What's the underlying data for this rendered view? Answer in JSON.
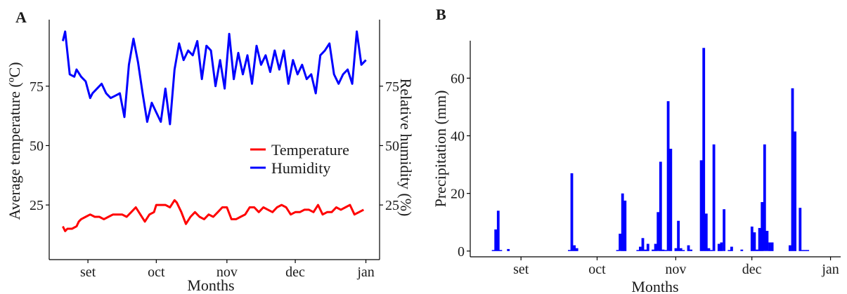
{
  "chart_data": [
    {
      "panel": "A",
      "type": "line",
      "xlabel": "Months",
      "ylabel": "Average temperature (ºC)",
      "y2label": "Relative humidity (%)",
      "x_ticks": [
        "set",
        "oct",
        "nov",
        "dec",
        "jan"
      ],
      "x_tick_dates": [
        "2020-09-01",
        "2020-10-01",
        "2020-11-01",
        "2020-12-01",
        "2021-01-01"
      ],
      "xlim": [
        "2020-08-15",
        "2021-01-07"
      ],
      "ylim": [
        2,
        103
      ],
      "y_ticks": [
        25,
        50,
        75
      ],
      "y2_ticks": [
        25,
        50,
        75
      ],
      "legend": {
        "position": "right",
        "entries": [
          "Temperature",
          "Humidity"
        ]
      },
      "grid": false,
      "series": [
        {
          "name": "Temperature",
          "color": "#ff0000",
          "x": [
            "2020-08-21",
            "2020-08-22",
            "2020-08-23",
            "2020-08-25",
            "2020-08-27",
            "2020-08-28",
            "2020-08-29",
            "2020-08-31",
            "2020-09-02",
            "2020-09-04",
            "2020-09-06",
            "2020-09-08",
            "2020-09-10",
            "2020-09-12",
            "2020-09-14",
            "2020-09-16",
            "2020-09-18",
            "2020-09-20",
            "2020-09-22",
            "2020-09-24",
            "2020-09-26",
            "2020-09-28",
            "2020-09-30",
            "2020-10-01",
            "2020-10-03",
            "2020-10-05",
            "2020-10-07",
            "2020-10-09",
            "2020-10-10",
            "2020-10-12",
            "2020-10-14",
            "2020-10-16",
            "2020-10-18",
            "2020-10-20",
            "2020-10-22",
            "2020-10-24",
            "2020-10-26",
            "2020-10-28",
            "2020-10-30",
            "2020-11-01",
            "2020-11-03",
            "2020-11-05",
            "2020-11-07",
            "2020-11-09",
            "2020-11-11",
            "2020-11-13",
            "2020-11-15",
            "2020-11-17",
            "2020-11-19",
            "2020-11-21",
            "2020-11-23",
            "2020-11-25",
            "2020-11-27",
            "2020-11-29",
            "2020-12-01",
            "2020-12-03",
            "2020-12-05",
            "2020-12-07",
            "2020-12-09",
            "2020-12-11",
            "2020-12-13",
            "2020-12-15",
            "2020-12-17",
            "2020-12-19",
            "2020-12-21",
            "2020-12-23",
            "2020-12-25",
            "2020-12-27",
            "2020-12-29",
            "2020-12-31"
          ],
          "values": [
            16,
            14,
            15,
            15,
            16,
            18,
            19,
            20,
            21,
            20,
            20,
            19,
            20,
            21,
            21,
            21,
            20,
            22,
            24,
            21,
            18,
            21,
            22,
            25,
            25,
            25,
            24,
            27,
            26,
            22,
            17,
            20,
            22,
            20,
            19,
            21,
            20,
            22,
            24,
            24,
            19,
            19,
            20,
            21,
            24,
            24,
            22,
            24,
            23,
            22,
            24,
            25,
            24,
            21,
            22,
            22,
            23,
            23,
            22,
            25,
            21,
            22,
            22,
            24,
            23,
            24,
            25,
            21,
            22,
            23
          ]
        },
        {
          "name": "Humidity",
          "color": "#0000ff",
          "x": [
            "2020-08-21",
            "2020-08-22",
            "2020-08-24",
            "2020-08-26",
            "2020-08-27",
            "2020-08-29",
            "2020-08-31",
            "2020-09-02",
            "2020-09-03",
            "2020-09-05",
            "2020-09-07",
            "2020-09-09",
            "2020-09-11",
            "2020-09-13",
            "2020-09-15",
            "2020-09-17",
            "2020-09-19",
            "2020-09-21",
            "2020-09-23",
            "2020-09-25",
            "2020-09-27",
            "2020-09-29",
            "2020-10-01",
            "2020-10-03",
            "2020-10-05",
            "2020-10-07",
            "2020-10-09",
            "2020-10-11",
            "2020-10-13",
            "2020-10-15",
            "2020-10-17",
            "2020-10-19",
            "2020-10-21",
            "2020-10-23",
            "2020-10-25",
            "2020-10-27",
            "2020-10-29",
            "2020-10-31",
            "2020-11-02",
            "2020-11-04",
            "2020-11-06",
            "2020-11-08",
            "2020-11-10",
            "2020-11-12",
            "2020-11-14",
            "2020-11-16",
            "2020-11-18",
            "2020-11-20",
            "2020-11-22",
            "2020-11-24",
            "2020-11-26",
            "2020-11-28",
            "2020-11-30",
            "2020-12-02",
            "2020-12-04",
            "2020-12-06",
            "2020-12-08",
            "2020-12-10",
            "2020-12-12",
            "2020-12-14",
            "2020-12-16",
            "2020-12-18",
            "2020-12-20",
            "2020-12-22",
            "2020-12-24",
            "2020-12-26",
            "2020-12-28",
            "2020-12-30",
            "2021-01-01"
          ],
          "values": [
            94,
            98,
            80,
            79,
            82,
            79,
            77,
            70,
            72,
            74,
            76,
            72,
            70,
            71,
            72,
            62,
            84,
            95,
            85,
            72,
            60,
            68,
            64,
            60,
            74,
            59,
            82,
            93,
            86,
            90,
            88,
            94,
            78,
            92,
            90,
            75,
            86,
            74,
            97,
            78,
            89,
            80,
            88,
            76,
            92,
            84,
            88,
            81,
            90,
            82,
            90,
            76,
            86,
            80,
            84,
            78,
            80,
            72,
            88,
            90,
            93,
            80,
            76,
            80,
            82,
            76,
            98,
            84,
            86
          ]
        }
      ]
    },
    {
      "panel": "B",
      "type": "bar",
      "xlabel": "Months",
      "ylabel": "Precipitation (mm)",
      "x_ticks": [
        "set",
        "oct",
        "nov",
        "dec",
        "jan"
      ],
      "x_tick_dates": [
        "2020-09-01",
        "2020-10-01",
        "2020-11-01",
        "2020-12-01",
        "2021-01-01"
      ],
      "xlim": [
        "2020-08-12",
        "2021-01-05"
      ],
      "ylim": [
        -2,
        73
      ],
      "y_ticks": [
        0,
        20,
        40,
        60
      ],
      "grid": false,
      "series": [
        {
          "name": "",
          "color": "#0000ff",
          "x": [
            "2020-08-21",
            "2020-08-22",
            "2020-08-23",
            "2020-08-24",
            "2020-08-27",
            "2020-09-20",
            "2020-09-21",
            "2020-09-22",
            "2020-09-23",
            "2020-10-09",
            "2020-10-10",
            "2020-10-11",
            "2020-10-12",
            "2020-10-17",
            "2020-10-18",
            "2020-10-19",
            "2020-10-20",
            "2020-10-21",
            "2020-10-23",
            "2020-10-24",
            "2020-10-25",
            "2020-10-26",
            "2020-10-27",
            "2020-10-28",
            "2020-10-29",
            "2020-10-30",
            "2020-11-01",
            "2020-11-02",
            "2020-11-03",
            "2020-11-04",
            "2020-11-06",
            "2020-11-07",
            "2020-11-11",
            "2020-11-12",
            "2020-11-13",
            "2020-11-14",
            "2020-11-15",
            "2020-11-16",
            "2020-11-18",
            "2020-11-19",
            "2020-11-20",
            "2020-11-22",
            "2020-11-23",
            "2020-11-27",
            "2020-12-01",
            "2020-12-02",
            "2020-12-03",
            "2020-12-04",
            "2020-12-05",
            "2020-12-06",
            "2020-12-07",
            "2020-12-08",
            "2020-12-09",
            "2020-12-16",
            "2020-12-17",
            "2020-12-18",
            "2020-12-20",
            "2020-12-21",
            "2020-12-22",
            "2020-12-23"
          ],
          "values": [
            0,
            7.5,
            14,
            0,
            0.7,
            0,
            27,
            2,
            1,
            0,
            6,
            20,
            17.5,
            0,
            1.5,
            4.5,
            0.5,
            2.5,
            0.5,
            2.5,
            13.5,
            31,
            0.5,
            0,
            52,
            35.5,
            1,
            10.5,
            1,
            0,
            2,
            0.5,
            31.5,
            70.5,
            13,
            1,
            0,
            37,
            2.5,
            3,
            14.5,
            0,
            1.5,
            0.5,
            8.5,
            6.5,
            0.5,
            8,
            17,
            37,
            7,
            3,
            3,
            2,
            56.5,
            41.5,
            15,
            0,
            0,
            0
          ]
        }
      ]
    }
  ]
}
